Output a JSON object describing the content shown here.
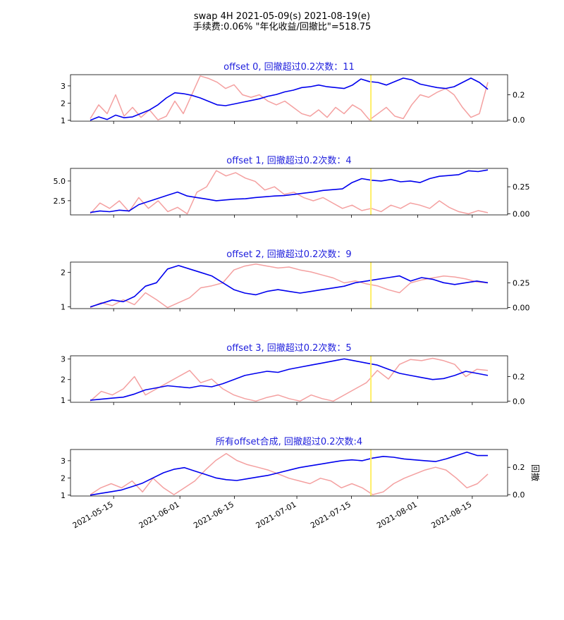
{
  "figure": {
    "title_line1": "swap 4H 2021-05-09(s) 2021-08-19(e)",
    "title_line2": "手续费:0.06% \"年化收益/回撤比\"=518.75",
    "colors": {
      "equity": "#0000ee",
      "drawdown": "#f4a0a0",
      "marker": "#ffee66",
      "title": "#2020dd"
    },
    "date_ticks": [
      "2021-05-15",
      "2021-06-01",
      "2021-06-15",
      "2021-07-01",
      "2021-07-15",
      "2021-08-01",
      "2021-08-15"
    ],
    "right_axis_label": "回撤",
    "marker_date": "2021-07-20"
  },
  "chart_data": [
    {
      "type": "line",
      "title": "offset 0, 回撤超过0.2次数：11",
      "x_range": [
        "2021-05-09",
        "2021-08-19"
      ],
      "left_ticks": [
        "1",
        "2",
        "3"
      ],
      "left_values": [
        1,
        2,
        3
      ],
      "ylim_left": [
        0.95,
        3.65
      ],
      "right_ticks": [
        "0.0",
        "0.2"
      ],
      "right_values": [
        0,
        0.2
      ],
      "ylim_right": [
        -0.01,
        0.36
      ],
      "series": [
        {
          "axis": "left",
          "color": "#0000ee",
          "values": [
            1.0,
            1.2,
            1.05,
            1.3,
            1.15,
            1.2,
            1.4,
            1.6,
            1.9,
            2.3,
            2.6,
            2.55,
            2.45,
            2.3,
            2.1,
            1.9,
            1.85,
            1.95,
            2.05,
            2.15,
            2.25,
            2.4,
            2.5,
            2.65,
            2.75,
            2.9,
            2.95,
            3.05,
            2.95,
            2.9,
            2.85,
            3.05,
            3.4,
            3.25,
            3.2,
            3.05,
            3.25,
            3.45,
            3.35,
            3.1,
            3.0,
            2.9,
            2.85,
            2.95,
            3.2,
            3.45,
            3.2,
            2.8
          ]
        },
        {
          "axis": "right",
          "color": "#f4a0a0",
          "values": [
            0.01,
            0.12,
            0.05,
            0.2,
            0.03,
            0.1,
            0.02,
            0.08,
            0.0,
            0.03,
            0.15,
            0.05,
            0.2,
            0.35,
            0.33,
            0.3,
            0.25,
            0.28,
            0.2,
            0.18,
            0.2,
            0.15,
            0.12,
            0.15,
            0.1,
            0.05,
            0.03,
            0.08,
            0.02,
            0.1,
            0.05,
            0.12,
            0.08,
            0.0,
            0.05,
            0.1,
            0.03,
            0.01,
            0.12,
            0.2,
            0.18,
            0.22,
            0.25,
            0.2,
            0.1,
            0.02,
            0.05,
            0.3
          ]
        }
      ]
    },
    {
      "type": "line",
      "title": "offset 1, 回撤超过0.2次数：4",
      "x_range": [
        "2021-05-09",
        "2021-08-19"
      ],
      "left_ticks": [
        "2.5",
        "5.0"
      ],
      "left_values": [
        2.5,
        5.0
      ],
      "ylim_left": [
        0.7,
        6.6
      ],
      "right_ticks": [
        "0.00",
        "0.25"
      ],
      "right_values": [
        0,
        0.25
      ],
      "ylim_right": [
        -0.01,
        0.42
      ],
      "series": [
        {
          "axis": "left",
          "color": "#0000ee",
          "values": [
            1.0,
            1.2,
            1.1,
            1.3,
            1.2,
            2.0,
            2.4,
            2.8,
            3.2,
            3.6,
            3.1,
            2.9,
            2.7,
            2.5,
            2.6,
            2.7,
            2.75,
            2.9,
            3.0,
            3.1,
            3.15,
            3.3,
            3.45,
            3.6,
            3.8,
            3.9,
            4.0,
            4.8,
            5.3,
            5.1,
            5.0,
            5.2,
            4.9,
            5.0,
            4.8,
            5.3,
            5.6,
            5.7,
            5.8,
            6.3,
            6.2,
            6.4
          ]
        },
        {
          "axis": "right",
          "color": "#f4a0a0",
          "values": [
            0.0,
            0.1,
            0.05,
            0.12,
            0.02,
            0.15,
            0.05,
            0.12,
            0.02,
            0.06,
            0.0,
            0.2,
            0.25,
            0.4,
            0.35,
            0.38,
            0.33,
            0.3,
            0.22,
            0.25,
            0.18,
            0.2,
            0.15,
            0.12,
            0.15,
            0.1,
            0.05,
            0.08,
            0.03,
            0.05,
            0.02,
            0.08,
            0.05,
            0.1,
            0.08,
            0.05,
            0.12,
            0.06,
            0.02,
            0.0,
            0.03,
            0.01
          ]
        }
      ]
    },
    {
      "type": "line",
      "title": "offset 2, 回撤超过0.2次数：9",
      "x_range": [
        "2021-05-09",
        "2021-08-19"
      ],
      "left_ticks": [
        "1",
        "2"
      ],
      "left_values": [
        1,
        2
      ],
      "ylim_left": [
        0.95,
        2.3
      ],
      "right_ticks": [
        "0.00",
        "0.25"
      ],
      "right_values": [
        0,
        0.25
      ],
      "ylim_right": [
        -0.01,
        0.46
      ],
      "series": [
        {
          "axis": "left",
          "color": "#0000ee",
          "values": [
            1.0,
            1.1,
            1.2,
            1.15,
            1.3,
            1.6,
            1.7,
            2.1,
            2.2,
            2.1,
            2.0,
            1.9,
            1.7,
            1.5,
            1.4,
            1.35,
            1.45,
            1.5,
            1.45,
            1.4,
            1.45,
            1.5,
            1.55,
            1.6,
            1.7,
            1.75,
            1.8,
            1.85,
            1.9,
            1.75,
            1.85,
            1.8,
            1.7,
            1.65,
            1.7,
            1.75,
            1.7
          ]
        },
        {
          "axis": "right",
          "color": "#f4a0a0",
          "values": [
            0.0,
            0.05,
            0.02,
            0.08,
            0.03,
            0.15,
            0.08,
            0.0,
            0.05,
            0.1,
            0.2,
            0.22,
            0.25,
            0.38,
            0.42,
            0.44,
            0.42,
            0.4,
            0.41,
            0.38,
            0.36,
            0.33,
            0.3,
            0.25,
            0.27,
            0.24,
            0.22,
            0.18,
            0.15,
            0.25,
            0.28,
            0.3,
            0.32,
            0.31,
            0.29,
            0.26,
            0.25
          ]
        }
      ]
    },
    {
      "type": "line",
      "title": "offset 3, 回撤超过0.2次数：5",
      "x_range": [
        "2021-05-09",
        "2021-08-19"
      ],
      "left_ticks": [
        "1",
        "2",
        "3"
      ],
      "left_values": [
        1,
        2,
        3
      ],
      "ylim_left": [
        0.9,
        3.15
      ],
      "right_ticks": [
        "0.0",
        "0.2"
      ],
      "right_values": [
        0,
        0.2
      ],
      "ylim_right": [
        -0.01,
        0.37
      ],
      "series": [
        {
          "axis": "left",
          "color": "#0000ee",
          "values": [
            1.0,
            1.05,
            1.1,
            1.15,
            1.3,
            1.5,
            1.6,
            1.7,
            1.65,
            1.6,
            1.7,
            1.65,
            1.8,
            2.0,
            2.2,
            2.3,
            2.4,
            2.35,
            2.5,
            2.6,
            2.7,
            2.8,
            2.9,
            3.0,
            2.9,
            2.8,
            2.7,
            2.5,
            2.3,
            2.2,
            2.1,
            2.0,
            2.05,
            2.2,
            2.4,
            2.3,
            2.2
          ]
        },
        {
          "axis": "right",
          "color": "#f4a0a0",
          "values": [
            0.0,
            0.08,
            0.05,
            0.1,
            0.2,
            0.05,
            0.1,
            0.15,
            0.2,
            0.25,
            0.15,
            0.18,
            0.1,
            0.05,
            0.02,
            0.0,
            0.03,
            0.05,
            0.02,
            0.0,
            0.05,
            0.02,
            0.0,
            0.05,
            0.1,
            0.15,
            0.25,
            0.18,
            0.3,
            0.34,
            0.33,
            0.35,
            0.33,
            0.3,
            0.2,
            0.26,
            0.25
          ]
        }
      ]
    },
    {
      "type": "line",
      "title": "所有offset合成, 回撤超过0.2次数:4",
      "x_range": [
        "2021-05-09",
        "2021-08-19"
      ],
      "left_ticks": [
        "1",
        "2",
        "3"
      ],
      "left_values": [
        1,
        2,
        3
      ],
      "ylim_left": [
        0.95,
        3.65
      ],
      "right_ticks": [
        "0.0",
        "0.2"
      ],
      "right_values": [
        0,
        0.2
      ],
      "ylim_right": [
        -0.01,
        0.33
      ],
      "right_label": "回撤",
      "series": [
        {
          "axis": "left",
          "color": "#0000ee",
          "values": [
            1.0,
            1.1,
            1.2,
            1.3,
            1.5,
            1.7,
            2.0,
            2.3,
            2.5,
            2.6,
            2.4,
            2.2,
            2.0,
            1.9,
            1.85,
            1.95,
            2.05,
            2.15,
            2.3,
            2.45,
            2.6,
            2.7,
            2.8,
            2.9,
            3.0,
            3.05,
            3.0,
            3.15,
            3.25,
            3.2,
            3.1,
            3.05,
            3.0,
            2.95,
            3.1,
            3.3,
            3.5,
            3.3,
            3.3
          ]
        },
        {
          "axis": "right",
          "color": "#f4a0a0",
          "values": [
            0.0,
            0.05,
            0.08,
            0.05,
            0.1,
            0.02,
            0.12,
            0.05,
            0.0,
            0.05,
            0.1,
            0.18,
            0.25,
            0.3,
            0.25,
            0.22,
            0.2,
            0.18,
            0.15,
            0.12,
            0.1,
            0.08,
            0.12,
            0.1,
            0.05,
            0.08,
            0.05,
            0.0,
            0.02,
            0.08,
            0.12,
            0.15,
            0.18,
            0.2,
            0.18,
            0.12,
            0.05,
            0.08,
            0.15
          ]
        }
      ]
    }
  ]
}
